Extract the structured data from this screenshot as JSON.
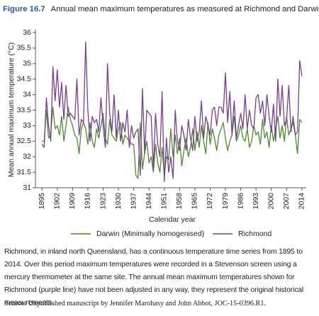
{
  "chart_data": {
    "type": "line",
    "figure_label": "Figure 16.7",
    "title": "Annual mean maximum temperatures as measured at Richmond and Darwin",
    "x_label": "Calendar year",
    "y_label": "Mean annual maximum temperature (°C)",
    "x": [
      1895,
      1896,
      1897,
      1898,
      1899,
      1900,
      1901,
      1902,
      1903,
      1904,
      1905,
      1906,
      1907,
      1908,
      1909,
      1910,
      1911,
      1912,
      1913,
      1914,
      1915,
      1916,
      1917,
      1918,
      1919,
      1920,
      1921,
      1922,
      1923,
      1924,
      1925,
      1926,
      1927,
      1928,
      1929,
      1930,
      1931,
      1932,
      1933,
      1934,
      1935,
      1936,
      1937,
      1938,
      1939,
      1940,
      1941,
      1942,
      1943,
      1944,
      1945,
      1946,
      1947,
      1948,
      1949,
      1950,
      1951,
      1952,
      1953,
      1954,
      1955,
      1956,
      1957,
      1958,
      1959,
      1960,
      1961,
      1962,
      1963,
      1964,
      1965,
      1966,
      1967,
      1968,
      1969,
      1970,
      1971,
      1972,
      1973,
      1974,
      1975,
      1976,
      1977,
      1978,
      1979,
      1980,
      1981,
      1982,
      1983,
      1984,
      1985,
      1986,
      1987,
      1988,
      1989,
      1990,
      1991,
      1992,
      1993,
      1994,
      1995,
      1996,
      1997,
      1998,
      1999,
      2000,
      2001,
      2002,
      2003,
      2004,
      2005,
      2006,
      2007,
      2008,
      2009,
      2010,
      2011,
      2012,
      2013,
      2014
    ],
    "series": [
      {
        "name": "Darwin (Minimally homogenised)",
        "color": "#4b8b2b",
        "values": [
          32.5,
          32.5,
          33.5,
          32.6,
          32.7,
          33.6,
          32.9,
          33.0,
          32.7,
          33.3,
          32.5,
          33.0,
          33.6,
          33.2,
          33.0,
          32.7,
          32.6,
          32.1,
          32.9,
          33.1,
          32.9,
          32.4,
          33.1,
          32.5,
          32.3,
          32.9,
          32.6,
          33.0,
          33.4,
          32.6,
          32.4,
          33.2,
          32.7,
          32.6,
          32.5,
          32.9,
          33.1,
          32.4,
          32.7,
          32.6,
          32.5,
          32.4,
          32.4,
          31.4,
          31.3,
          33.1,
          31.6,
          32.1,
          32.5,
          31.8,
          32.0,
          31.5,
          32.4,
          31.8,
          31.5,
          32.3,
          31.4,
          32.0,
          31.9,
          32.9,
          32.0,
          32.7,
          32.1,
          32.6,
          31.7,
          32.2,
          32.6,
          32.0,
          32.3,
          32.9,
          32.2,
          32.8,
          32.3,
          33.0,
          32.5,
          32.1,
          33.1,
          32.4,
          32.9,
          32.6,
          32.2,
          32.7,
          32.9,
          33.1,
          32.6,
          32.2,
          32.5,
          32.7,
          33.3,
          32.5,
          32.7,
          33.0,
          32.6,
          32.5,
          32.9,
          32.3,
          32.5,
          33.0,
          32.7,
          32.8,
          32.4,
          33.2,
          32.6,
          32.8,
          32.3,
          33.0,
          32.5,
          32.9,
          33.3,
          32.6,
          33.0,
          32.5,
          33.3,
          32.7,
          32.9,
          33.1,
          32.7,
          32.1,
          33.2,
          33.1
        ]
      },
      {
        "name": "Richmond",
        "color": "#7a3d8e",
        "values": [
          32.4,
          32.3,
          33.9,
          33.0,
          32.5,
          34.9,
          33.8,
          34.8,
          33.6,
          34.4,
          33.2,
          34.3,
          33.3,
          33.4,
          33.3,
          33.2,
          34.5,
          32.7,
          33.2,
          33.1,
          35.7,
          33.5,
          32.5,
          33.3,
          33.1,
          33.2,
          32.8,
          33.9,
          33.0,
          32.3,
          35.0,
          33.4,
          32.8,
          34.0,
          32.6,
          33.5,
          32.5,
          33.1,
          32.8,
          33.5,
          32.3,
          33.0,
          32.6,
          32.8,
          32.9,
          31.4,
          34.2,
          32.1,
          33.5,
          33.4,
          33.3,
          31.6,
          33.4,
          32.4,
          32.0,
          34.1,
          31.2,
          32.6,
          31.5,
          32.0,
          31.3,
          33.5,
          32.5,
          32.2,
          33.0,
          32.7,
          32.2,
          33.2,
          32.6,
          32.2,
          33.3,
          32.5,
          32.8,
          33.8,
          32.6,
          33.3,
          33.0,
          32.7,
          33.5,
          33.6,
          33.0,
          33.6,
          33.6,
          33.4,
          34.7,
          33.1,
          34.1,
          32.7,
          33.8,
          32.6,
          33.0,
          33.4,
          32.9,
          34.0,
          32.9,
          33.5,
          33.0,
          32.9,
          33.9,
          34.0,
          33.4,
          33.8,
          33.0,
          34.0,
          33.3,
          32.8,
          33.7,
          32.5,
          34.5,
          33.3,
          34.3,
          33.0,
          33.2,
          34.3,
          32.8,
          33.3,
          32.7,
          32.8,
          35.1,
          34.6
        ]
      }
    ],
    "xlim": [
      1892,
      2016
    ],
    "xticks": [
      1895,
      1902,
      1909,
      1916,
      1923,
      1930,
      1937,
      1944,
      1951,
      1958,
      1965,
      1972,
      1979,
      1986,
      1993,
      2000,
      2007,
      2014
    ],
    "ylim": [
      31,
      36
    ],
    "yticks": [
      31,
      31.5,
      32,
      32.5,
      33,
      33.5,
      34,
      34.5,
      35,
      35.5,
      36
    ],
    "legend": "bottom",
    "caption": "Richmond, in inland north Queensland, has a continuous temperature time series from 1895 to 2014. Over this period maximum temperatures were recorded in a Stevenson screen using a mercury thermometer at the same site. The annual mean maximum temperatures shown for Richmond (purple line) have not been adjusted in any way, they represent the original historical measurements.",
    "source": "Source: Unpublished manuscript by Jennifer Marohasy and John Abbot, JOC-15-0396.R1."
  }
}
